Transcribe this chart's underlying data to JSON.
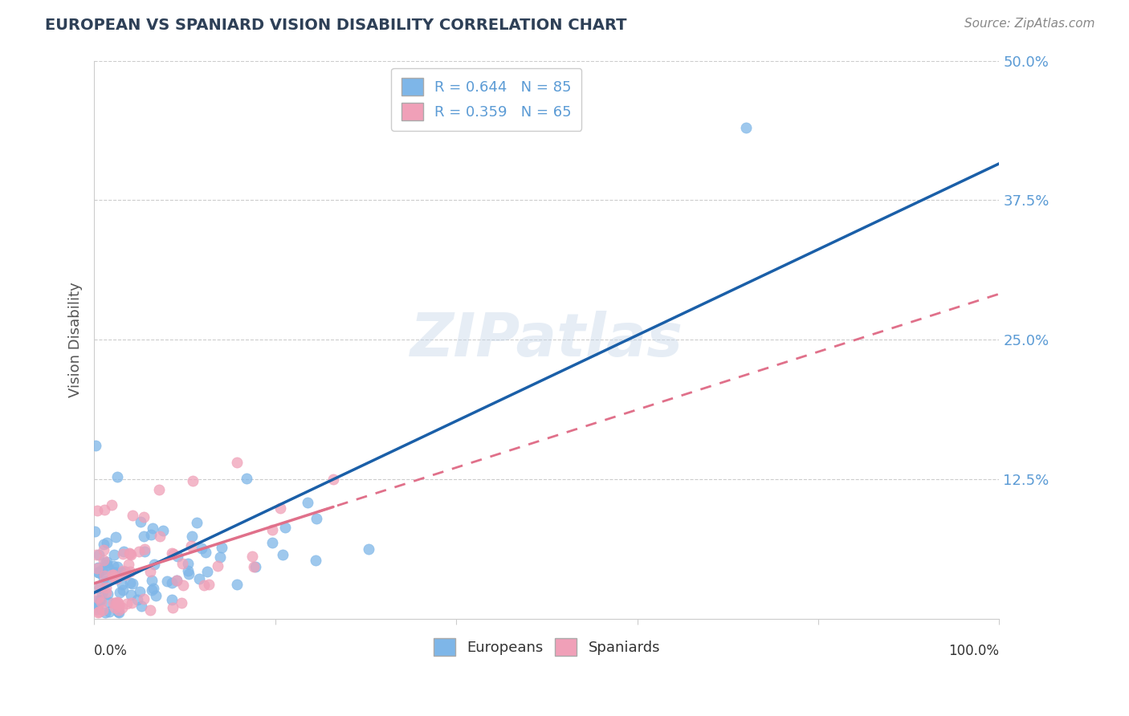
{
  "title": "EUROPEAN VS SPANIARD VISION DISABILITY CORRELATION CHART",
  "source": "Source: ZipAtlas.com",
  "ylabel": "Vision Disability",
  "y_ticks": [
    0.0,
    0.125,
    0.25,
    0.375,
    0.5
  ],
  "y_tick_labels": [
    "",
    "12.5%",
    "25.0%",
    "37.5%",
    "50.0%"
  ],
  "european_R": 0.644,
  "european_N": 85,
  "spaniard_R": 0.359,
  "spaniard_N": 65,
  "european_color": "#7EB6E8",
  "spaniard_color": "#F0A0B8",
  "european_line_color": "#1A5FA8",
  "spaniard_line_color": "#E0708A",
  "watermark_text": "ZIPatlas",
  "background_color": "#FFFFFF"
}
